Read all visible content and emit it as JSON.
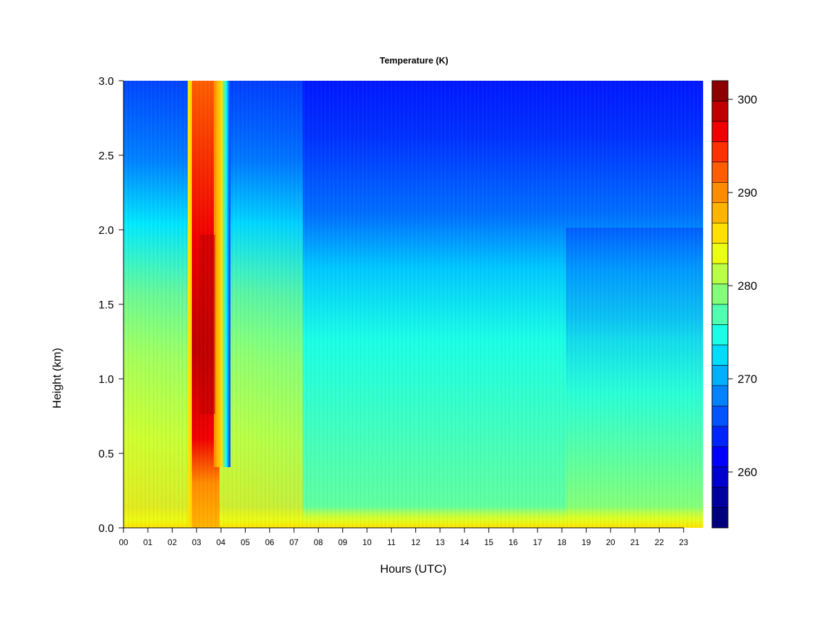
{
  "chart_data": {
    "type": "heatmap",
    "title": "Temperature (K)",
    "xlabel": "Hours (UTC)",
    "ylabel": "Height (km)",
    "x_ticks": [
      "00",
      "01",
      "02",
      "03",
      "04",
      "05",
      "06",
      "07",
      "08",
      "09",
      "10",
      "11",
      "12",
      "13",
      "14",
      "15",
      "16",
      "17",
      "18",
      "19",
      "20",
      "21",
      "22",
      "23"
    ],
    "xlim": [
      0,
      23.8
    ],
    "y_ticks": [
      "0.0",
      "0.5",
      "1.0",
      "1.5",
      "2.0",
      "2.5",
      "3.0"
    ],
    "ylim": [
      0.0,
      3.0
    ],
    "colorbar": {
      "ticks": [
        "260",
        "270",
        "280",
        "290",
        "300"
      ],
      "range": [
        254,
        302
      ],
      "levels": 18,
      "colors": [
        "#00007f",
        "#00009f",
        "#0000cf",
        "#0000ff",
        "#0026ff",
        "#0054ff",
        "#0082ff",
        "#00b0ff",
        "#00dcff",
        "#1affe6",
        "#50ffaf",
        "#84ff7a",
        "#b8ff46",
        "#ebff13",
        "#ffe000",
        "#ffb400",
        "#ff8c00",
        "#ff5e00",
        "#ff3000",
        "#f00000",
        "#c00000",
        "#8c0000"
      ]
    },
    "features": {
      "warm_column_hours": [
        2.75,
        4.25
      ],
      "surface_temperature_K": 284,
      "top_temperature_K": 260
    }
  }
}
